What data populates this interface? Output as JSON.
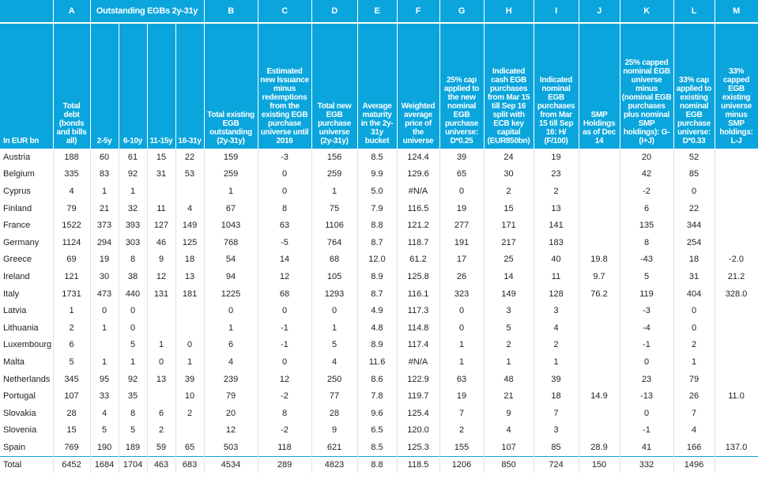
{
  "table": {
    "letter_row": [
      "",
      "A",
      "Outstanding EGBs 2y-31y",
      "B",
      "C",
      "D",
      "E",
      "F",
      "G",
      "H",
      "I",
      "J",
      "K",
      "L",
      "M"
    ],
    "row_label_header": "In EUR bn",
    "headers": [
      "Total debt (bonds and bills all)",
      "2-5y",
      "6-10y",
      "11-15y",
      "16-31y",
      "Total existing EGB outstanding (2y-31y)",
      "Estimated new Issuance minus redemptions from the existing EGB purchase universe until 2016",
      "Total new EGB purchase universe (2y-31y)",
      "Average maturity in the 2y-31y bucket",
      "Weighted average price of the universe",
      "25% cap applied to the new nominal EGB purchase universe: D*0.25",
      "Indicated cash EGB purchases from Mar 15 till Sep 16 split with ECB key capital (EUR850bn)",
      "Indicated nominal EGB purchases from Mar 15 till Sep 16: H/ (F/100)",
      "SMP Holdings as of Dec 14",
      "25% capped nominal EGB universe minus (nominal EGB purchases plus nominal SMP holdings): G-(I+J)",
      "33% cap applied to existing nominal EGB purchase universe: D*0.33",
      "33% capped EGB existing universe minus SMP holdings: L-J"
    ],
    "rows": [
      [
        "Austria",
        "188",
        "60",
        "61",
        "15",
        "22",
        "159",
        "-3",
        "156",
        "8.5",
        "124.4",
        "39",
        "24",
        "19",
        "",
        "20",
        "52",
        ""
      ],
      [
        "Belgium",
        "335",
        "83",
        "92",
        "31",
        "53",
        "259",
        "0",
        "259",
        "9.9",
        "129.6",
        "65",
        "30",
        "23",
        "",
        "42",
        "85",
        ""
      ],
      [
        "Cyprus",
        "4",
        "1",
        "1",
        "",
        "",
        "1",
        "0",
        "1",
        "5.0",
        "#N/A",
        "0",
        "2",
        "2",
        "",
        "-2",
        "0",
        ""
      ],
      [
        "Finland",
        "79",
        "21",
        "32",
        "11",
        "4",
        "67",
        "8",
        "75",
        "7.9",
        "116.5",
        "19",
        "15",
        "13",
        "",
        "6",
        "22",
        ""
      ],
      [
        "France",
        "1522",
        "373",
        "393",
        "127",
        "149",
        "1043",
        "63",
        "1106",
        "8.8",
        "121.2",
        "277",
        "171",
        "141",
        "",
        "135",
        "344",
        ""
      ],
      [
        "Germany",
        "1124",
        "294",
        "303",
        "46",
        "125",
        "768",
        "-5",
        "764",
        "8.7",
        "118.7",
        "191",
        "217",
        "183",
        "",
        "8",
        "254",
        ""
      ],
      [
        "Greece",
        "69",
        "19",
        "8",
        "9",
        "18",
        "54",
        "14",
        "68",
        "12.0",
        "61.2",
        "17",
        "25",
        "40",
        "19.8",
        "-43",
        "18",
        "-2.0"
      ],
      [
        "Ireland",
        "121",
        "30",
        "38",
        "12",
        "13",
        "94",
        "12",
        "105",
        "8.9",
        "125.8",
        "26",
        "14",
        "11",
        "9.7",
        "5",
        "31",
        "21.2"
      ],
      [
        "Italy",
        "1731",
        "473",
        "440",
        "131",
        "181",
        "1225",
        "68",
        "1293",
        "8.7",
        "116.1",
        "323",
        "149",
        "128",
        "76.2",
        "119",
        "404",
        "328.0"
      ],
      [
        "Latvia",
        "1",
        "0",
        "0",
        "",
        "",
        "0",
        "0",
        "0",
        "4.9",
        "117.3",
        "0",
        "3",
        "3",
        "",
        "-3",
        "0",
        ""
      ],
      [
        "Lithuania",
        "2",
        "1",
        "0",
        "",
        "",
        "1",
        "-1",
        "1",
        "4.8",
        "114.8",
        "0",
        "5",
        "4",
        "",
        "-4",
        "0",
        ""
      ],
      [
        "Luxembourg",
        "6",
        "",
        "5",
        "1",
        "0",
        "6",
        "-1",
        "5",
        "8.9",
        "117.4",
        "1",
        "2",
        "2",
        "",
        "-1",
        "2",
        ""
      ],
      [
        "Malta",
        "5",
        "1",
        "1",
        "0",
        "1",
        "4",
        "0",
        "4",
        "11.6",
        "#N/A",
        "1",
        "1",
        "1",
        "",
        "0",
        "1",
        ""
      ],
      [
        "Netherlands",
        "345",
        "95",
        "92",
        "13",
        "39",
        "239",
        "12",
        "250",
        "8.6",
        "122.9",
        "63",
        "48",
        "39",
        "",
        "23",
        "79",
        ""
      ],
      [
        "Portugal",
        "107",
        "33",
        "35",
        "",
        "10",
        "79",
        "-2",
        "77",
        "7.8",
        "119.7",
        "19",
        "21",
        "18",
        "14.9",
        "-13",
        "26",
        "11.0"
      ],
      [
        "Slovakia",
        "28",
        "4",
        "8",
        "6",
        "2",
        "20",
        "8",
        "28",
        "9.6",
        "125.4",
        "7",
        "9",
        "7",
        "",
        "0",
        "7",
        ""
      ],
      [
        "Slovenia",
        "15",
        "5",
        "5",
        "2",
        "",
        "12",
        "-2",
        "9",
        "6.5",
        "120.0",
        "2",
        "4",
        "3",
        "",
        "-1",
        "4",
        ""
      ],
      [
        "Spain",
        "769",
        "190",
        "189",
        "59",
        "65",
        "503",
        "118",
        "621",
        "8.5",
        "125.3",
        "155",
        "107",
        "85",
        "28.9",
        "41",
        "166",
        "137.0"
      ]
    ],
    "total": [
      "Total",
      "6452",
      "1684",
      "1704",
      "463",
      "683",
      "4534",
      "289",
      "4823",
      "8.8",
      "118.5",
      "1206",
      "850",
      "724",
      "150",
      "332",
      "1496",
      ""
    ]
  }
}
